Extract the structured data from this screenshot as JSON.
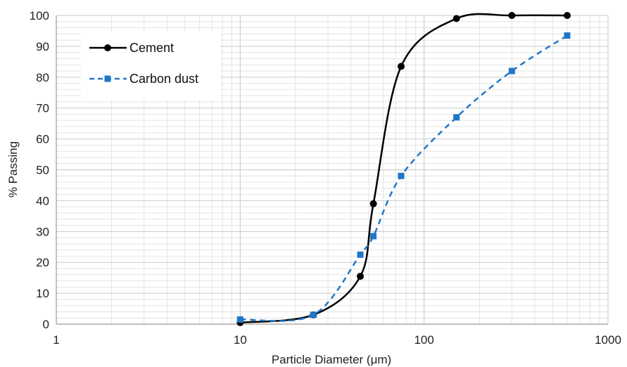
{
  "chart_data": {
    "type": "line",
    "title": "",
    "xlabel": "Particle Diameter (μm)",
    "ylabel": "% Passing",
    "x_scale": "log",
    "xlim": [
      1,
      1000
    ],
    "ylim": [
      0,
      100
    ],
    "x_ticks": [
      1,
      10,
      100,
      1000
    ],
    "x_tick_labels": [
      "1",
      "10",
      "100",
      "1000"
    ],
    "y_ticks": [
      0,
      10,
      20,
      30,
      40,
      50,
      60,
      70,
      80,
      90,
      100
    ],
    "y_tick_labels": [
      "0",
      "10",
      "20",
      "30",
      "40",
      "50",
      "60",
      "70",
      "80",
      "90",
      "100"
    ],
    "grid": true,
    "legend_position": "top-left",
    "series": [
      {
        "name": "Cement",
        "color": "#000000",
        "line_style": "solid",
        "marker": "circle",
        "x": [
          10,
          25,
          45,
          53,
          75,
          150,
          300,
          600
        ],
        "y": [
          0.5,
          3,
          15.5,
          39,
          83.5,
          99,
          100,
          100
        ]
      },
      {
        "name": "Carbon dust",
        "color": "#1f77c7",
        "line_style": "dashed",
        "marker": "square",
        "x": [
          10,
          25,
          45,
          53,
          75,
          150,
          300,
          600
        ],
        "y": [
          1.5,
          3,
          22.5,
          28.5,
          48,
          67,
          82,
          93.5
        ]
      }
    ]
  }
}
